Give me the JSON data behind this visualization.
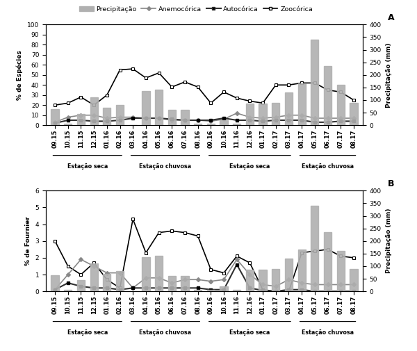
{
  "x_labels": [
    "09.15",
    "10.15",
    "11.15",
    "12.15",
    "01.16",
    "02.16",
    "03.16",
    "04.16",
    "05.16",
    "06.16",
    "07.16",
    "08.16",
    "09.16",
    "10.16",
    "11.16",
    "12.16",
    "01.17",
    "02.17",
    "03.17",
    "04.17",
    "05.17",
    "06.17",
    "07.17",
    "08.17"
  ],
  "precipitacao": [
    65,
    5,
    45,
    110,
    70,
    80,
    0,
    135,
    140,
    60,
    60,
    5,
    5,
    20,
    5,
    85,
    85,
    88,
    130,
    165,
    340,
    235,
    160,
    90
  ],
  "zoocórica_A": [
    20,
    22,
    28,
    20,
    30,
    55,
    56,
    47,
    52,
    38,
    43,
    38,
    22,
    33,
    27,
    24,
    22,
    40,
    40,
    42,
    42,
    35,
    33,
    25
  ],
  "anemocórica_A": [
    3,
    8,
    10,
    10,
    7,
    8,
    8,
    7,
    7,
    5,
    5,
    5,
    4,
    6,
    12,
    8,
    7,
    8,
    10,
    10,
    7,
    7,
    7,
    7
  ],
  "autocórica_A": [
    2,
    5,
    5,
    4,
    4,
    5,
    7,
    7,
    7,
    6,
    5,
    5,
    5,
    7,
    5,
    5,
    4,
    5,
    5,
    5,
    3,
    3,
    4,
    4
  ],
  "zoocórica_B": [
    3.0,
    1.5,
    1.0,
    1.7,
    0.7,
    0.2,
    4.3,
    2.3,
    3.5,
    3.6,
    3.5,
    3.3,
    1.3,
    1.1,
    2.1,
    1.7,
    0.1,
    0.0,
    0.0,
    2.3,
    2.4,
    2.5,
    2.1,
    2.0
  ],
  "anemocórica_B": [
    0.1,
    1.0,
    1.9,
    1.5,
    1.1,
    1.1,
    0.2,
    0.8,
    0.8,
    0.5,
    0.7,
    0.7,
    0.6,
    0.7,
    1.9,
    1.0,
    0.4,
    0.3,
    0.7,
    0.5,
    0.4,
    0.4,
    0.4,
    0.4
  ],
  "autocórica_B": [
    0.1,
    0.5,
    0.3,
    0.2,
    0.2,
    0.1,
    0.2,
    0.2,
    0.2,
    0.2,
    0.2,
    0.2,
    0.1,
    0.1,
    1.6,
    0.2,
    0.05,
    0.0,
    0.1,
    0.1,
    0.0,
    0.0,
    0.0,
    0.0
  ],
  "seasons": [
    {
      "label": "Estação seca",
      "start": 0,
      "end": 5
    },
    {
      "label": "Estação chuvosa",
      "start": 6,
      "end": 11
    },
    {
      "label": "Estação seca",
      "start": 12,
      "end": 18
    },
    {
      "label": "Estação chuvosa",
      "start": 19,
      "end": 23
    }
  ],
  "bar_color": "#b0b0b0",
  "line_zoo_color": "#000000",
  "line_anem_color": "#888888",
  "line_auto_color": "#303030",
  "ylabel_A": "% de Espécies",
  "ylabel_B": "% de Fournier",
  "ylabel_right": "Precipitação (mm)",
  "ylim_A": [
    0,
    100
  ],
  "ylim_B": [
    0,
    6
  ],
  "ylim_prec": [
    0,
    400
  ],
  "yticks_A": [
    0,
    10,
    20,
    30,
    40,
    50,
    60,
    70,
    80,
    90,
    100
  ],
  "yticks_B": [
    0,
    1,
    2,
    3,
    4,
    5,
    6
  ],
  "yticks_prec": [
    0,
    50,
    100,
    150,
    200,
    250,
    300,
    350,
    400
  ]
}
